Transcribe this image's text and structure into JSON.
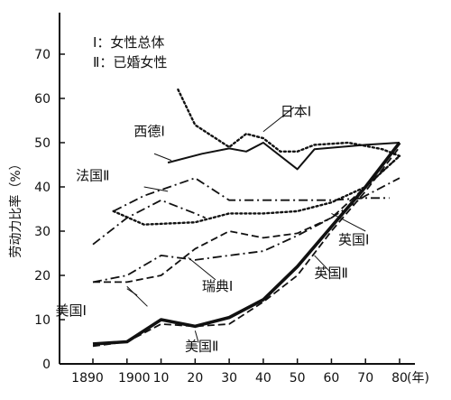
{
  "chart_data": {
    "type": "line",
    "title": "",
    "xlabel": "(年)",
    "ylabel": "劳动力比率（%）",
    "ylim": [
      0,
      70
    ],
    "x_ticks": [
      1890,
      1900,
      1910,
      1920,
      1930,
      1940,
      1950,
      1960,
      1970,
      1980
    ],
    "x_tick_labels": [
      "1890",
      "1900",
      "10",
      "20",
      "30",
      "40",
      "50",
      "60",
      "70",
      "80"
    ],
    "y_ticks": [
      0,
      10,
      20,
      30,
      40,
      50,
      60,
      70
    ],
    "legend": [
      "Ⅰ：女性总体",
      "Ⅱ：已婚女性"
    ],
    "series": [
      {
        "name": "日本Ⅰ",
        "style": "dotted",
        "points": [
          [
            1915,
            62
          ],
          [
            1920,
            54
          ],
          [
            1930,
            49
          ],
          [
            1935,
            52
          ],
          [
            1940,
            51
          ],
          [
            1945,
            48
          ],
          [
            1950,
            48
          ],
          [
            1955,
            49.5
          ],
          [
            1965,
            50
          ],
          [
            1975,
            48.5
          ],
          [
            1980,
            47
          ]
        ]
      },
      {
        "name": "西德Ⅰ",
        "style": "solid",
        "points": [
          [
            1912,
            45.5
          ],
          [
            1922,
            47.5
          ],
          [
            1930,
            48.7
          ],
          [
            1935,
            48
          ],
          [
            1940,
            50
          ],
          [
            1950,
            44
          ],
          [
            1955,
            48.5
          ],
          [
            1970,
            49.5
          ],
          [
            1980,
            50
          ]
        ]
      },
      {
        "name": "法国Ⅱ",
        "style": "dashdot",
        "points": [
          [
            1896,
            34.5
          ],
          [
            1905,
            38
          ],
          [
            1920,
            42
          ],
          [
            1930,
            37
          ],
          [
            1940,
            37
          ],
          [
            1950,
            37
          ],
          [
            1960,
            37
          ],
          [
            1970,
            37.5
          ],
          [
            1977,
            37.5
          ]
        ]
      },
      {
        "name": "英国Ⅰ",
        "style": "dotted",
        "points": [
          [
            1896,
            34.5
          ],
          [
            1905,
            31.5
          ],
          [
            1920,
            32
          ],
          [
            1930,
            34
          ],
          [
            1940,
            34
          ],
          [
            1950,
            34.5
          ],
          [
            1960,
            36.5
          ],
          [
            1970,
            40
          ],
          [
            1980,
            47
          ]
        ]
      },
      {
        "name": "瑞典Ⅰ",
        "style": "dashdot",
        "points": [
          [
            1890,
            27
          ],
          [
            1900,
            33
          ],
          [
            1910,
            37
          ],
          [
            1920,
            34
          ],
          [
            1923,
            33
          ]
        ]
      },
      {
        "name": "美国Ⅰ",
        "style": "dashdot",
        "points": [
          [
            1890,
            18.5
          ],
          [
            1900,
            20
          ],
          [
            1910,
            24.5
          ],
          [
            1920,
            23.5
          ],
          [
            1930,
            24.5
          ],
          [
            1940,
            25.5
          ],
          [
            1950,
            29
          ],
          [
            1960,
            33
          ],
          [
            1970,
            38
          ],
          [
            1980,
            42
          ]
        ]
      },
      {
        "name": "英国Ⅱ",
        "style": "dashed",
        "points": [
          [
            1890,
            18.5
          ],
          [
            1900,
            18.5
          ],
          [
            1910,
            20
          ],
          [
            1920,
            26
          ],
          [
            1930,
            30
          ],
          [
            1940,
            28.5
          ],
          [
            1950,
            29.5
          ],
          [
            1960,
            33
          ],
          [
            1970,
            40
          ],
          [
            1980,
            47
          ]
        ]
      },
      {
        "name": "美国Ⅱ",
        "style": "thick",
        "points": [
          [
            1890,
            4.5
          ],
          [
            1900,
            5
          ],
          [
            1910,
            10
          ],
          [
            1920,
            8.5
          ],
          [
            1930,
            10.5
          ],
          [
            1940,
            14.5
          ],
          [
            1950,
            22
          ],
          [
            1960,
            31
          ],
          [
            1970,
            40
          ],
          [
            1980,
            50
          ]
        ]
      },
      {
        "name": "英国Ⅱ",
        "style": "dashed",
        "points": [
          [
            1890,
            4
          ],
          [
            1900,
            5
          ],
          [
            1910,
            9
          ],
          [
            1920,
            8.5
          ],
          [
            1930,
            9
          ],
          [
            1940,
            14
          ],
          [
            1950,
            20
          ],
          [
            1960,
            30
          ],
          [
            1970,
            39
          ],
          [
            1980,
            49
          ]
        ]
      }
    ],
    "labels": [
      {
        "text": "日本Ⅰ",
        "x": 1945,
        "y": 56
      },
      {
        "text": "西德Ⅰ",
        "x": 1902,
        "y": 51.5
      },
      {
        "text": "法国Ⅱ",
        "x": 1885,
        "y": 41.5
      },
      {
        "text": "英国Ⅰ",
        "x": 1962,
        "y": 27
      },
      {
        "text": "英国Ⅱ",
        "x": 1955,
        "y": 19.5
      },
      {
        "text": "瑞典Ⅰ",
        "x": 1922,
        "y": 16.5
      },
      {
        "text": "美国Ⅰ",
        "x": 1879,
        "y": 11
      },
      {
        "text": "美国Ⅱ",
        "x": 1917,
        "y": 3
      }
    ]
  }
}
